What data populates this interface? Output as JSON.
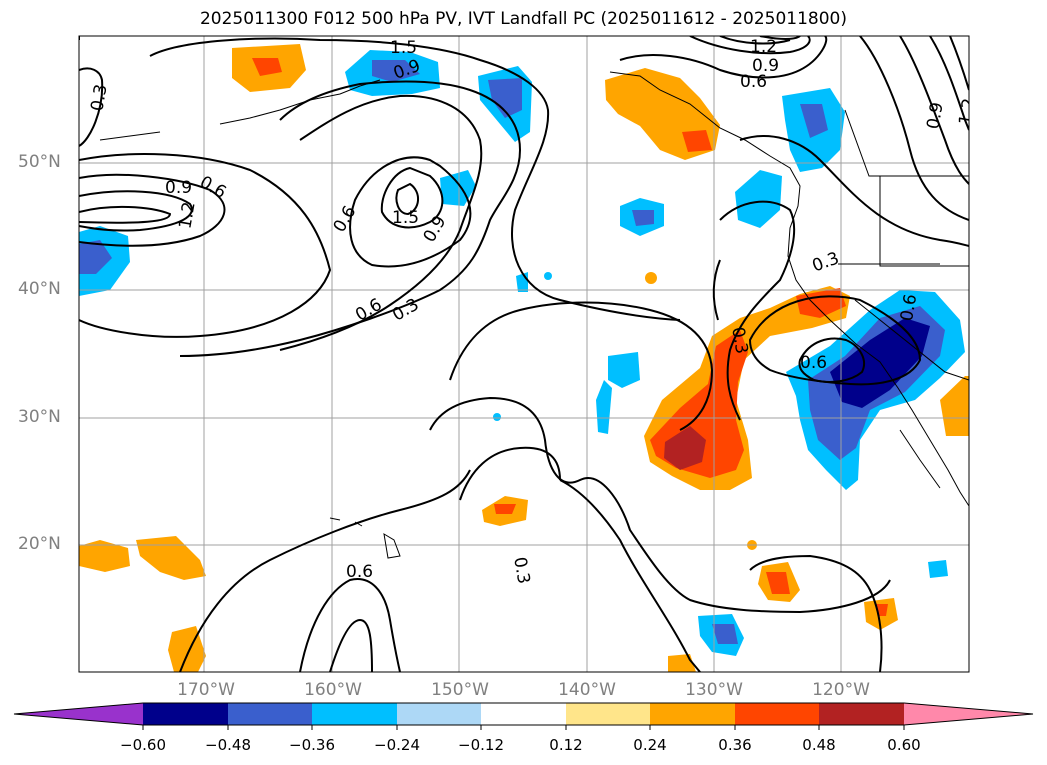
{
  "title": "2025011300 F012 500 hPa PV, IVT Landfall PC (2025011612 - 2025011800)",
  "latitude_labels": [
    "50°N",
    "40°N",
    "30°N",
    "20°N"
  ],
  "longitude_labels": [
    "170°W",
    "160°W",
    "150°W",
    "140°W",
    "130°W",
    "120°W"
  ],
  "contour_labels": [
    "0.3",
    "0.6",
    "0.9",
    "1.2",
    "1.5"
  ],
  "colorbar": {
    "ticks": [
      "−0.60",
      "−0.48",
      "−0.36",
      "−0.24",
      "−0.12",
      "0.12",
      "0.24",
      "0.36",
      "0.48",
      "0.60"
    ],
    "colors": [
      "#9932cc",
      "#00008b",
      "#3a5fcd",
      "#00bfff",
      "#add8f6",
      "#ffffff",
      "#ffe58a",
      "#ffa500",
      "#ff4500",
      "#b22222",
      "#ff88aa"
    ]
  },
  "colors": {
    "grid": "#a0a0a0",
    "contour": "#000000",
    "label": "#808080"
  }
}
